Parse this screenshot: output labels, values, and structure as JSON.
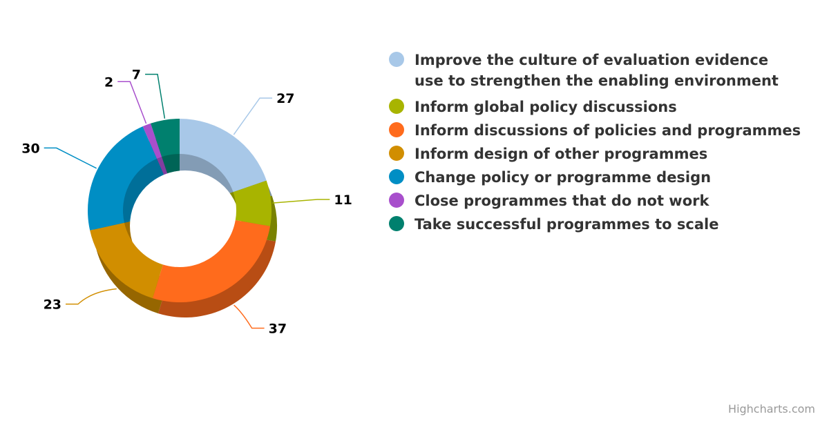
{
  "chart_data": {
    "type": "pie",
    "variant": "donut-3d",
    "title": "",
    "series": [
      {
        "values": [
          {
            "label": "Improve the culture of evaluation evidence use to strengthen the enabling environment",
            "value": 27,
            "color": "#A8C8E8"
          },
          {
            "label": "Inform global policy discussions",
            "value": 11,
            "color": "#A8B400"
          },
          {
            "label": "Inform discussions of policies and programmes",
            "value": 37,
            "color": "#FF6B1C"
          },
          {
            "label": "Inform design of other programmes",
            "value": 23,
            "color": "#D18E00"
          },
          {
            "label": "Change policy or programme design",
            "value": 30,
            "color": "#008EC4"
          },
          {
            "label": "Close programmes that do not work",
            "value": 2,
            "color": "#A84FCC"
          },
          {
            "label": "Take successful programmes to scale",
            "value": 7,
            "color": "#00806E"
          }
        ]
      }
    ],
    "legend_position": "right",
    "data_labels": true
  },
  "legend": {
    "items": [
      {
        "lines": [
          "Improve the culture of evaluation evidence",
          "use to strengthen the enabling environment"
        ],
        "color": "#A8C8E8"
      },
      {
        "lines": [
          "Inform global policy discussions"
        ],
        "color": "#A8B400"
      },
      {
        "lines": [
          "Inform discussions of policies and programmes"
        ],
        "color": "#FF6B1C"
      },
      {
        "lines": [
          "Inform design of other programmes"
        ],
        "color": "#D18E00"
      },
      {
        "lines": [
          "Change policy or programme design"
        ],
        "color": "#008EC4"
      },
      {
        "lines": [
          "Close programmes that do not work"
        ],
        "color": "#A84FCC"
      },
      {
        "lines": [
          "Take successful programmes to scale"
        ],
        "color": "#00806E"
      }
    ]
  },
  "credits": "Highcharts.com"
}
